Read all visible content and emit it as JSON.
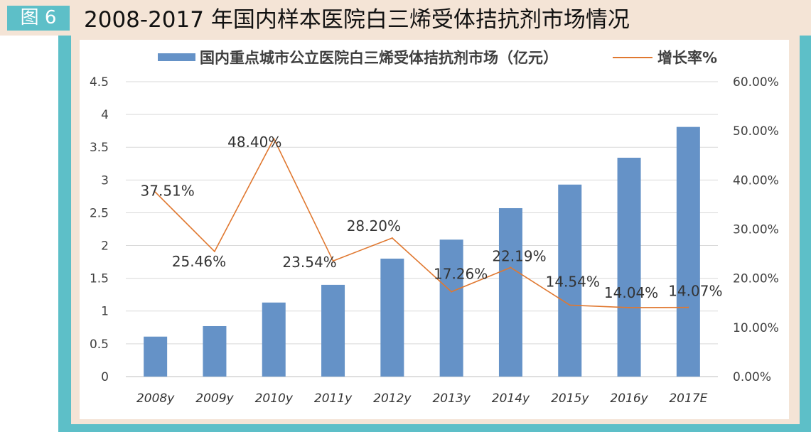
{
  "header": {
    "figure_label": "图 6"
  },
  "chart_data": {
    "type": "bar",
    "title": "2008-2017 年国内样本医院白三烯受体拮抗剂市场情况",
    "categories": [
      "2008y",
      "2009y",
      "2010y",
      "2011y",
      "2012y",
      "2013y",
      "2014y",
      "2015y",
      "2016y",
      "2017E"
    ],
    "series": [
      {
        "name": "国内重点城市公立医院白三烯受体拮抗剂市场（亿元）",
        "type": "bar",
        "axis": "left",
        "values": [
          0.61,
          0.77,
          1.13,
          1.4,
          1.8,
          2.09,
          2.57,
          2.93,
          3.34,
          3.81
        ]
      },
      {
        "name": "增长率%",
        "type": "line",
        "axis": "right",
        "values": [
          37.51,
          25.46,
          48.4,
          23.54,
          28.2,
          17.26,
          22.19,
          14.54,
          14.04,
          14.07
        ],
        "data_labels": [
          "37.51%",
          "25.46%",
          "48.40%",
          "23.54%",
          "28.20%",
          "17.26%",
          "22.19%",
          "14.54%",
          "14.04%",
          "14.07%"
        ]
      }
    ],
    "y_axis": {
      "ylim": [
        0,
        4.5
      ],
      "ticks": [
        0,
        0.5,
        1,
        1.5,
        2,
        2.5,
        3,
        3.5,
        4,
        4.5
      ]
    },
    "y2_axis": {
      "ylim": [
        0,
        60
      ],
      "ticks": [
        "0.00%",
        "10.00%",
        "20.00%",
        "30.00%",
        "40.00%",
        "50.00%",
        "60.00%"
      ]
    },
    "legend": "top",
    "grid": true
  },
  "colors": {
    "frame_teal": "#5dbfc8",
    "panel_peach": "#f4e4d6",
    "plot_background": "#ffffff",
    "bar": "#6592c7",
    "line": "#e07830",
    "gridline": "#d9d9d9",
    "axis_line": "#bfbfbf"
  }
}
